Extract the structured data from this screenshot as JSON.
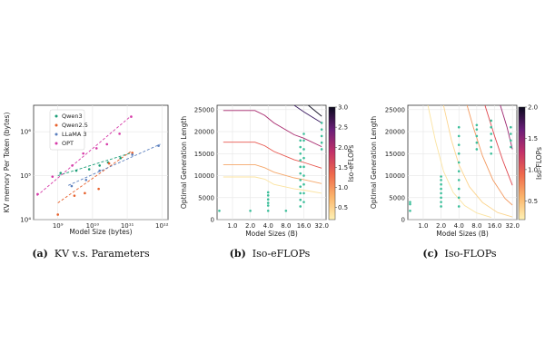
{
  "chart_data": [
    {
      "type": "scatter",
      "caption_tag": "(a)",
      "caption": "KV v.s. Parameters",
      "xlabel": "Model Size (bytes)",
      "ylabel": "KV memory Per Token (bytes)",
      "xscale": "log",
      "yscale": "log",
      "xlim": [
        200000000.0,
        1500000000000.0
      ],
      "ylim": [
        10000,
        4000000
      ],
      "x_ticks": [
        1000000000.0,
        10000000000.0,
        100000000000.0,
        1000000000000.0
      ],
      "x_tick_labels": [
        "10⁹",
        "10¹⁰",
        "10¹¹",
        "10¹²"
      ],
      "y_ticks": [
        10000,
        100000,
        1000000
      ],
      "y_tick_labels": [
        "10⁴",
        "10⁵",
        "10⁶"
      ],
      "grid": true,
      "legend_position": "top-left",
      "series": [
        {
          "name": "Qwen3",
          "color": "#1b9e77",
          "x": [
            1200000000.0,
            3400000000.0,
            8000000000.0,
            16000000000.0,
            28000000000.0,
            64000000000.0
          ],
          "y": [
            115000,
            130000,
            140000,
            170000,
            200000,
            250000
          ],
          "fit": [
            [
              1000000000.0,
              100000
            ],
            [
              130000000000.0,
              330000
            ]
          ]
        },
        {
          "name": "Qwen2.5",
          "color": "#e7602b",
          "x": [
            1000000000.0,
            3000000000.0,
            6000000000.0,
            15000000000.0,
            30000000000.0,
            140000000000.0
          ],
          "y": [
            13000,
            35000,
            40000,
            50000,
            190000,
            330000
          ],
          "fit": [
            [
              1000000000.0,
              24000
            ],
            [
              130000000000.0,
              360000
            ]
          ]
        },
        {
          "name": "LLaMA 3",
          "color": "#5a7fbe",
          "x": [
            2500000000.0,
            6500000000.0,
            16000000000.0,
            140000000000.0,
            800000000000.0
          ],
          "y": [
            58000,
            80000,
            130000,
            300000,
            480000
          ],
          "fit": [
            [
              2000000000.0,
              60000
            ],
            [
              900000000000.0,
              520000
            ]
          ]
        },
        {
          "name": "OPT",
          "color": "#d63aa8",
          "x": [
            260000000.0,
            700000000.0,
            2600000000.0,
            5400000000.0,
            13000000000.0,
            26000000000.0,
            60000000000.0,
            130000000000.0
          ],
          "y": [
            38000,
            95000,
            170000,
            320000,
            420000,
            520000,
            900000,
            2200000
          ],
          "fit": [
            [
              250000000.0,
              35000
            ],
            [
              130000000000.0,
              2300000
            ]
          ]
        }
      ]
    },
    {
      "type": "scatter",
      "caption_tag": "(b)",
      "caption": "Iso-eFLOPs",
      "xlabel": "Model Sizes (B)",
      "ylabel": "Optimal Generation Length",
      "xscale": "log2",
      "xlim": [
        0.55,
        38
      ],
      "ylim": [
        0,
        26000
      ],
      "x_ticks": [
        1,
        2,
        4,
        8,
        16,
        32
      ],
      "x_tick_labels": [
        "1.0",
        "2.0",
        "4.0",
        "8.0",
        "16.0",
        "32.0"
      ],
      "y_ticks": [
        0,
        5000,
        10000,
        15000,
        20000,
        25000
      ],
      "y_tick_labels": [
        "0",
        "5000",
        "10000",
        "15000",
        "20000",
        "25000"
      ],
      "colorbar": {
        "label": "Iso-eFLOPs",
        "ticks": [
          0.5,
          1.0,
          1.5,
          2.0,
          2.5,
          3.0
        ],
        "tick_labels": [
          "0.5",
          "1.0",
          "1.5",
          "2.0",
          "2.5",
          "3.0"
        ],
        "range": [
          0.2,
          3.0
        ]
      },
      "points_color": "#3dbf9b",
      "points": [
        [
          0.6,
          2000
        ],
        [
          2.0,
          2000
        ],
        [
          4.0,
          2000
        ],
        [
          4.0,
          3200
        ],
        [
          4.0,
          3800
        ],
        [
          4.0,
          4600
        ],
        [
          4.0,
          5500
        ],
        [
          4.0,
          6200
        ],
        [
          8.0,
          2000
        ],
        [
          14,
          3000
        ],
        [
          14,
          4500
        ],
        [
          14,
          6000
        ],
        [
          14,
          7500
        ],
        [
          14,
          9000
        ],
        [
          14,
          10500
        ],
        [
          14,
          12000
        ],
        [
          14,
          13500
        ],
        [
          14,
          15000
        ],
        [
          14,
          16500
        ],
        [
          14,
          18000
        ],
        [
          16,
          4000
        ],
        [
          16,
          6000
        ],
        [
          16,
          8000
        ],
        [
          16,
          10000
        ],
        [
          16,
          12000
        ],
        [
          16,
          14000
        ],
        [
          16,
          16000
        ],
        [
          16,
          18000
        ],
        [
          16,
          19500
        ],
        [
          32,
          16000
        ],
        [
          32,
          17500
        ],
        [
          32,
          19000
        ],
        [
          32,
          20500
        ],
        [
          32,
          22000
        ]
      ],
      "iso_lines": [
        {
          "level": 0.3,
          "color": "#fbe3a0",
          "points": [
            [
              0.7,
              9700
            ],
            [
              2.4,
              9700
            ],
            [
              3.5,
              9200
            ],
            [
              5,
              8000
            ],
            [
              11,
              7000
            ],
            [
              16,
              6700
            ],
            [
              32,
              6000
            ]
          ]
        },
        {
          "level": 0.6,
          "color": "#f5a86b",
          "points": [
            [
              0.7,
              12500
            ],
            [
              2.4,
              12500
            ],
            [
              3.5,
              11800
            ],
            [
              5,
              10800
            ],
            [
              11,
              9500
            ],
            [
              16,
              9100
            ],
            [
              32,
              8200
            ]
          ]
        },
        {
          "level": 1.0,
          "color": "#e8574f",
          "points": [
            [
              0.7,
              17600
            ],
            [
              2.4,
              17600
            ],
            [
              3.5,
              16800
            ],
            [
              5,
              15500
            ],
            [
              11,
              13600
            ],
            [
              16,
              13000
            ],
            [
              32,
              11700
            ]
          ]
        },
        {
          "level": 1.8,
          "color": "#a82a6e",
          "points": [
            [
              0.7,
              24800
            ],
            [
              2.4,
              24800
            ],
            [
              3.5,
              23700
            ],
            [
              5,
              22000
            ],
            [
              11,
              19300
            ],
            [
              16,
              18500
            ],
            [
              32,
              16600
            ]
          ]
        },
        {
          "level": 2.6,
          "color": "#3a1a60",
          "points": [
            [
              11,
              26000
            ],
            [
              16,
              24500
            ],
            [
              32,
              22000
            ]
          ]
        },
        {
          "level": 3.0,
          "color": "#0c0a1e",
          "points": [
            [
              19,
              26000
            ],
            [
              32,
              23500
            ]
          ]
        }
      ]
    },
    {
      "type": "scatter",
      "caption_tag": "(c)",
      "caption": "Iso-FLOPs",
      "xlabel": "Model Sizes (B)",
      "ylabel": "Optimal Generation Length",
      "xscale": "log2",
      "xlim": [
        0.55,
        38
      ],
      "ylim": [
        0,
        26000
      ],
      "x_ticks": [
        1,
        2,
        4,
        8,
        16,
        32
      ],
      "x_tick_labels": [
        "1.0",
        "2.0",
        "4.0",
        "8.0",
        "16.0",
        "32.0"
      ],
      "y_ticks": [
        0,
        5000,
        10000,
        15000,
        20000,
        25000
      ],
      "y_tick_labels": [
        "0",
        "5000",
        "10000",
        "15000",
        "20000",
        "25000"
      ],
      "colorbar": {
        "label": "Iso-FLOPs",
        "ticks": [
          0.5,
          1.0,
          1.5,
          2.0
        ],
        "tick_labels": [
          "0.5",
          "1.0",
          "1.5",
          "2.0"
        ],
        "range": [
          0.2,
          2.0
        ]
      },
      "points_color": "#3dbf9b",
      "points": [
        [
          0.6,
          3500
        ],
        [
          0.6,
          4000
        ],
        [
          0.6,
          2000
        ],
        [
          2.0,
          3000
        ],
        [
          2.0,
          4000
        ],
        [
          2.0,
          5000
        ],
        [
          2.0,
          6000
        ],
        [
          2.0,
          7000
        ],
        [
          2.0,
          8000
        ],
        [
          2.0,
          9000
        ],
        [
          2.0,
          9800
        ],
        [
          4.0,
          3000
        ],
        [
          4.0,
          5000
        ],
        [
          4.0,
          7000
        ],
        [
          4.0,
          9000
        ],
        [
          4.0,
          11000
        ],
        [
          4.0,
          13000
        ],
        [
          4.0,
          15000
        ],
        [
          4.0,
          17000
        ],
        [
          4.0,
          19000
        ],
        [
          4.0,
          21000
        ],
        [
          8.0,
          16000
        ],
        [
          8.0,
          17500
        ],
        [
          8.0,
          19000
        ],
        [
          8.0,
          20500
        ],
        [
          8.0,
          21500
        ],
        [
          14,
          15000
        ],
        [
          14,
          16500
        ],
        [
          14,
          18000
        ],
        [
          14,
          19500
        ],
        [
          14,
          21000
        ],
        [
          14,
          22500
        ],
        [
          30,
          16500
        ],
        [
          30,
          18000
        ],
        [
          30,
          19500
        ],
        [
          30,
          21000
        ]
      ],
      "iso_lines": [
        {
          "level": 0.3,
          "color": "#fbe3a0",
          "points": [
            [
              1.2,
              26000
            ],
            [
              1.6,
              18000
            ],
            [
              2.2,
              11000
            ],
            [
              3.2,
              6200
            ],
            [
              5,
              3200
            ],
            [
              8,
              1500
            ],
            [
              14,
              500
            ]
          ]
        },
        {
          "level": 0.6,
          "color": "#fcd58f",
          "points": [
            [
              2.2,
              26000
            ],
            [
              3,
              18000
            ],
            [
              4,
              12500
            ],
            [
              6,
              7500
            ],
            [
              10,
              3900
            ],
            [
              18,
              1600
            ],
            [
              32,
              600
            ]
          ]
        },
        {
          "level": 1.0,
          "color": "#f39a60",
          "points": [
            [
              5.5,
              26000
            ],
            [
              7,
              21000
            ],
            [
              10,
              14500
            ],
            [
              15,
              9000
            ],
            [
              24,
              4800
            ],
            [
              32,
              3300
            ]
          ]
        },
        {
          "level": 1.4,
          "color": "#e0464e",
          "points": [
            [
              11,
              26000
            ],
            [
              16,
              19000
            ],
            [
              22,
              13500
            ],
            [
              32,
              7800
            ]
          ]
        },
        {
          "level": 1.8,
          "color": "#9d2570",
          "points": [
            [
              20,
              26000
            ],
            [
              26,
              21000
            ],
            [
              32,
              16000
            ]
          ]
        }
      ]
    }
  ]
}
